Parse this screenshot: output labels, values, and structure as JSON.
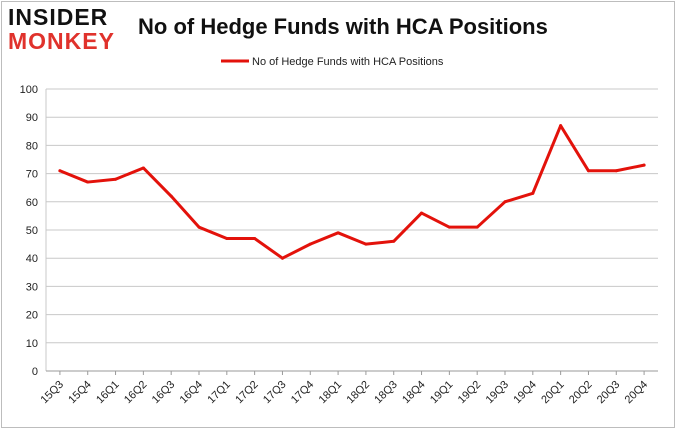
{
  "logo": {
    "line1": "INSIDER",
    "line2": "MONKEY"
  },
  "chart_data": {
    "type": "line",
    "title": "No of Hedge Funds with HCA Positions",
    "xlabel": "",
    "ylabel": "",
    "categories": [
      "15Q3",
      "15Q4",
      "16Q1",
      "16Q2",
      "16Q3",
      "16Q4",
      "17Q1",
      "17Q2",
      "17Q3",
      "17Q4",
      "18Q1",
      "18Q2",
      "18Q3",
      "18Q4",
      "19Q1",
      "19Q2",
      "19Q3",
      "19Q4",
      "20Q1",
      "20Q2",
      "20Q3",
      "20Q4"
    ],
    "series": [
      {
        "name": "No of Hedge Funds with HCA Positions",
        "color": "#e3120b",
        "values": [
          71,
          67,
          68,
          72,
          62,
          51,
          47,
          47,
          40,
          45,
          49,
          45,
          46,
          56,
          51,
          51,
          60,
          63,
          87,
          71,
          71,
          73
        ]
      }
    ],
    "ylim": [
      0,
      100
    ],
    "yticks": [
      0,
      10,
      20,
      30,
      40,
      50,
      60,
      70,
      80,
      90,
      100
    ],
    "grid": true,
    "legend": "top-center",
    "gridColor": "#c8c8c8"
  }
}
